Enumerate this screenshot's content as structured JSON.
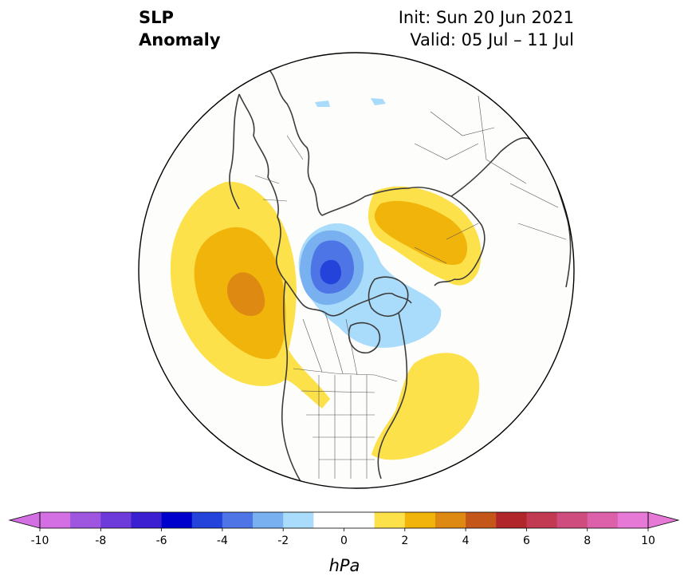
{
  "title": {
    "field": "SLP",
    "field_sub": "Anomaly",
    "init": "Init: Sun 20 Jun 2021",
    "valid": "Valid: 05 Jul – 11 Jul"
  },
  "colorbar": {
    "unit": "hPa",
    "tick_labels": [
      "-10",
      "-8",
      "-6",
      "-4",
      "-2",
      "0",
      "2",
      "4",
      "6",
      "8",
      "10"
    ],
    "colors": [
      "#d36fe3",
      "#9e55e0",
      "#6e3bdb",
      "#3d1fd2",
      "#0000cc",
      "#2343db",
      "#4e75e6",
      "#78b0f0",
      "#a9dbfb",
      "#ffffff",
      "#ffffff",
      "#fde14b",
      "#f0b40b",
      "#de8a12",
      "#c45619",
      "#b0262a",
      "#c23a52",
      "#cf4c7e",
      "#dc60aa",
      "#e678d6"
    ]
  }
}
